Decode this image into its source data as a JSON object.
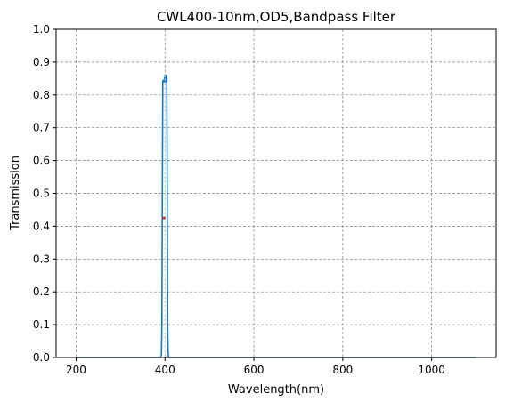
{
  "chart_data": {
    "type": "line",
    "title": "CWL400-10nm,OD5,Bandpass Filter",
    "xlabel": "Wavelength(nm)",
    "ylabel": "Transmission",
    "xlim": [
      155,
      1145
    ],
    "ylim": [
      0,
      1.0
    ],
    "x_ticks": [
      200,
      400,
      600,
      800,
      1000
    ],
    "y_ticks": [
      0.0,
      0.1,
      0.2,
      0.3,
      0.4,
      0.5,
      0.6,
      0.7,
      0.8,
      0.9,
      1.0
    ],
    "x_tick_labels": [
      "200",
      "400",
      "600",
      "800",
      "1000"
    ],
    "y_tick_labels": [
      "0.0",
      "0.1",
      "0.2",
      "0.3",
      "0.4",
      "0.5",
      "0.6",
      "0.7",
      "0.8",
      "0.9",
      "1.0"
    ],
    "grid": true,
    "series": [
      {
        "color": "#1f77b4",
        "x": [
          200,
          385,
          390,
          392,
          393,
          394,
          395,
          396,
          397,
          398,
          399,
          400,
          401,
          402,
          403,
          404,
          405,
          406,
          407,
          408,
          410,
          415,
          1100
        ],
        "y": [
          0.0,
          0.0,
          0.0,
          0.01,
          0.1,
          0.5,
          0.84,
          0.845,
          0.845,
          0.84,
          0.845,
          0.86,
          0.84,
          0.845,
          0.86,
          0.86,
          0.5,
          0.1,
          0.02,
          0.0,
          0.0,
          0.0,
          0.0
        ]
      }
    ],
    "marker": {
      "x": 400,
      "y": 0.425,
      "color": "#d62728"
    }
  }
}
